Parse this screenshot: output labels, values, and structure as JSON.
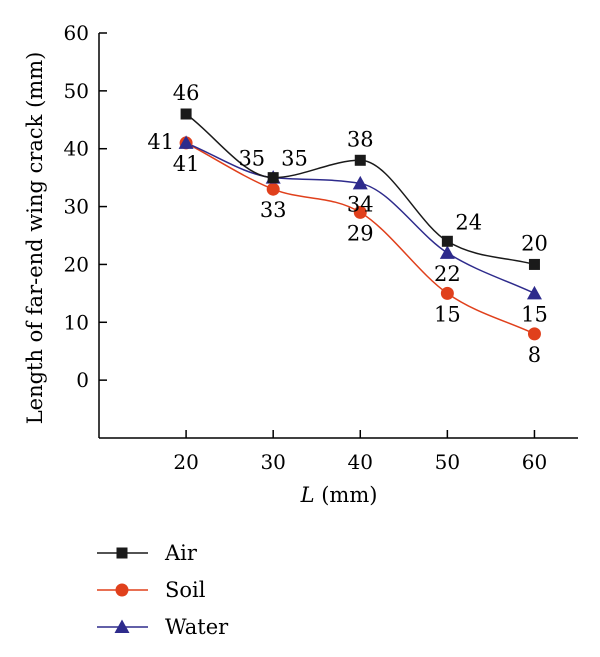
{
  "chart_data": {
    "type": "line",
    "title": "",
    "xlabel_italic": "L",
    "xlabel_rest": " (mm)",
    "ylabel": "Length of far-end wing crack (mm)",
    "x": [
      20,
      30,
      40,
      50,
      60
    ],
    "xlim": [
      10,
      65
    ],
    "ylim": [
      -10,
      60
    ],
    "xticks": [
      20,
      30,
      40,
      50,
      60
    ],
    "yticks": [
      0,
      10,
      20,
      30,
      40,
      50,
      60
    ],
    "grid": false,
    "legend_position": "bottom-left",
    "series": [
      {
        "name": "Air",
        "values": [
          46,
          35,
          38,
          24,
          20
        ],
        "color": "#1a1a1a",
        "marker": "square"
      },
      {
        "name": "Soil",
        "values": [
          41,
          33,
          29,
          15,
          8
        ],
        "color": "#e0401c",
        "marker": "circle"
      },
      {
        "name": "Water",
        "values": [
          41,
          35,
          34,
          22,
          15
        ],
        "color": "#2e2b8c",
        "marker": "triangle"
      }
    ],
    "data_labels": [
      {
        "series": "Air",
        "index": 0,
        "text": "46",
        "pos": "above"
      },
      {
        "series": "Air",
        "index": 1,
        "text": "35",
        "pos": "above-right"
      },
      {
        "series": "Air",
        "index": 2,
        "text": "38",
        "pos": "above"
      },
      {
        "series": "Air",
        "index": 3,
        "text": "24",
        "pos": "above-right"
      },
      {
        "series": "Air",
        "index": 4,
        "text": "20",
        "pos": "above"
      },
      {
        "series": "Soil",
        "index": 0,
        "text": "41",
        "pos": "below"
      },
      {
        "series": "Soil",
        "index": 1,
        "text": "33",
        "pos": "below"
      },
      {
        "series": "Soil",
        "index": 2,
        "text": "29",
        "pos": "below"
      },
      {
        "series": "Soil",
        "index": 3,
        "text": "15",
        "pos": "below"
      },
      {
        "series": "Soil",
        "index": 4,
        "text": "8",
        "pos": "below"
      },
      {
        "series": "Water",
        "index": 0,
        "text": "41",
        "pos": "left"
      },
      {
        "series": "Water",
        "index": 1,
        "text": "35",
        "pos": "above-left"
      },
      {
        "series": "Water",
        "index": 2,
        "text": "34",
        "pos": "below"
      },
      {
        "series": "Water",
        "index": 3,
        "text": "22",
        "pos": "below"
      },
      {
        "series": "Water",
        "index": 4,
        "text": "15",
        "pos": "below"
      }
    ]
  }
}
